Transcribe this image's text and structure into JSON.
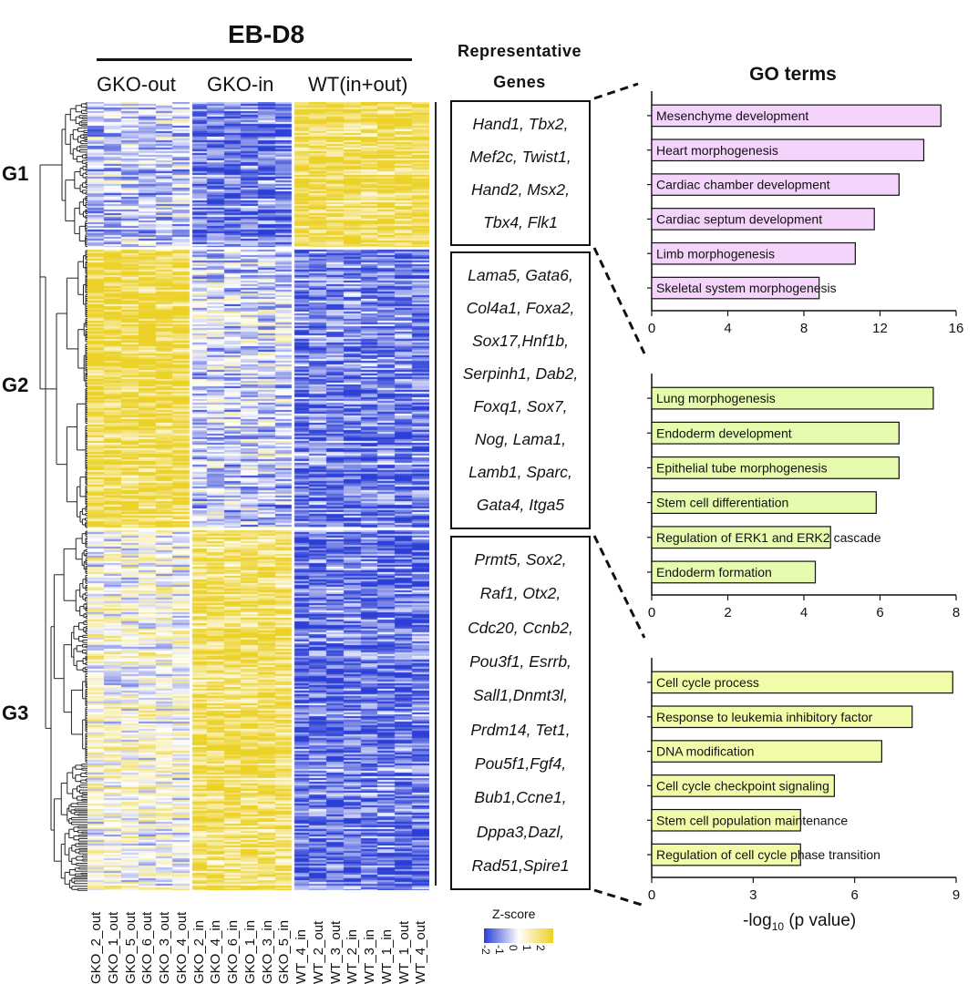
{
  "title": "EB-D8",
  "conditions": [
    "GKO-out",
    "GKO-in",
    "WT(in+out)"
  ],
  "groups": [
    "G1",
    "G2",
    "G3"
  ],
  "representative_genes_title": [
    "Representative",
    "Genes"
  ],
  "gene_boxes": [
    [
      "Hand1, Tbx2,",
      "Mef2c, Twist1,",
      "Hand2, Msx2,",
      "Tbx4, Flk1"
    ],
    [
      "Lama5, Gata6,",
      "Col4a1, Foxa2,",
      "Sox17,Hnf1b,",
      "Serpinh1, Dab2,",
      "Foxq1, Sox7,",
      "Nog, Lama1,",
      "Lamb1, Sparc,",
      "Gata4, Itga5"
    ],
    [
      "Prmt5, Sox2,",
      "Raf1, Otx2,",
      "Cdc20, Ccnb2,",
      "Pou3f1, Esrrb,",
      "Sall1,Dnmt3l,",
      "Prdm14, Tet1,",
      "Pou5f1,Fgf4,",
      "Bub1,Ccne1,",
      "Dppa3,Dazl,",
      "Rad51,Spire1"
    ]
  ],
  "samples": [
    "GKO_2_out",
    "GKO_1_out",
    "GKO_5_out",
    "GKO_6_out",
    "GKO_3_out",
    "GKO_4_out",
    "GKO_2_in",
    "GKO_4_in",
    "GKO_6_in",
    "GKO_1_in",
    "GKO_3_in",
    "GKO_5_in",
    "WT_4_in",
    "WT_2_out",
    "WT_3_out",
    "WT_2_in",
    "WT_3_in",
    "WT_1_in",
    "WT_1_out",
    "WT_4_out"
  ],
  "zscore": {
    "title": "Z-score",
    "ticks": [
      "-2",
      "-1",
      "0",
      "1",
      "2"
    ],
    "low_color": "#2b3fd6",
    "mid_color": "#ffffff",
    "high_color": "#ecd126"
  },
  "go_title": "GO terms",
  "chart_data": [
    {
      "type": "bar",
      "orientation": "horizontal",
      "color": "#f4d4fb",
      "categories": [
        "Mesenchyme development",
        "Heart morphogenesis",
        "Cardiac chamber development",
        "Cardiac septum development",
        "Limb morphogenesis",
        "Skeletal system morphogenesis"
      ],
      "values": [
        15.2,
        14.3,
        13.0,
        11.7,
        10.7,
        8.8
      ],
      "xlim": [
        0,
        16
      ],
      "xticks": [
        "0",
        "4",
        "8",
        "12",
        "16"
      ],
      "xlabel": ""
    },
    {
      "type": "bar",
      "orientation": "horizontal",
      "color": "#e7fbae",
      "categories": [
        "Lung morphogenesis",
        "Endoderm development",
        "Epithelial tube morphogenesis",
        "Stem cell differentiation",
        "Regulation of ERK1 and ERK2 cascade",
        "Endoderm formation"
      ],
      "values": [
        7.4,
        6.5,
        6.5,
        5.9,
        4.7,
        4.3
      ],
      "xlim": [
        0,
        8
      ],
      "xticks": [
        "0",
        "2",
        "4",
        "6",
        "8"
      ],
      "xlabel": ""
    },
    {
      "type": "bar",
      "orientation": "horizontal",
      "color": "#f2fba8",
      "categories": [
        "Cell cycle process",
        "Response to leukemia inhibitory factor",
        "DNA modification",
        "Cell cycle checkpoint signaling",
        "Stem cell population maintenance",
        "Regulation of cell cycle phase transition"
      ],
      "values": [
        8.9,
        7.7,
        6.8,
        5.4,
        4.4,
        4.4
      ],
      "xlim": [
        0,
        9
      ],
      "xticks": [
        "0",
        "3",
        "6",
        "9"
      ],
      "xlabel": "-log10 (p value)"
    }
  ],
  "xaxis_title": {
    "main": "-log",
    "sub": "10",
    "rest": " (p value)"
  }
}
